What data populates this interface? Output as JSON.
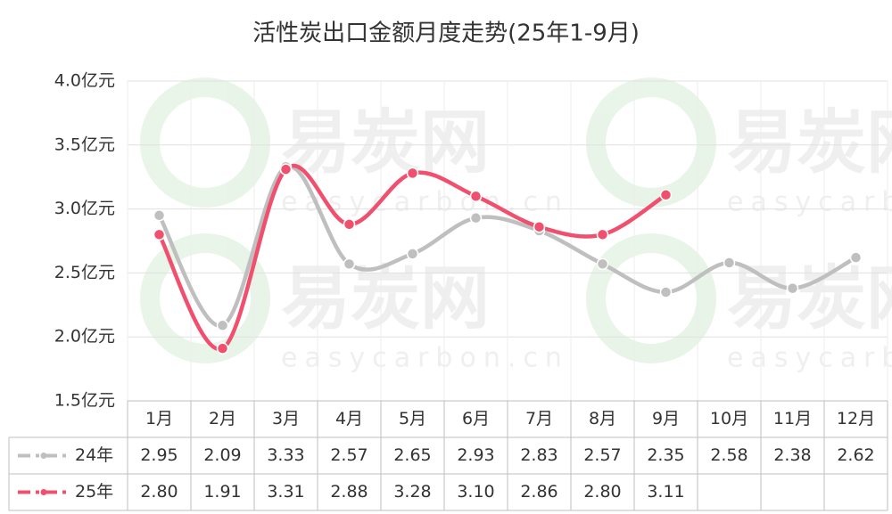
{
  "chart_data": {
    "type": "line",
    "title": "活性炭出口金额月度走势(25年1-9月)",
    "watermark": [
      "易炭网",
      "easycarbon.cn"
    ],
    "categories": [
      "1月",
      "2月",
      "3月",
      "4月",
      "5月",
      "6月",
      "7月",
      "8月",
      "9月",
      "10月",
      "11月",
      "12月"
    ],
    "series": [
      {
        "name": "24年",
        "color": "#bfbfbf",
        "values": [
          2.95,
          2.09,
          3.33,
          2.57,
          2.65,
          2.93,
          2.83,
          2.57,
          2.35,
          2.58,
          2.38,
          2.62
        ],
        "value_labels": [
          "2.95",
          "2.09",
          "3.33",
          "2.57",
          "2.65",
          "2.93",
          "2.83",
          "2.57",
          "2.35",
          "2.58",
          "2.38",
          "2.62"
        ]
      },
      {
        "name": "25年",
        "color": "#f0506e",
        "values": [
          2.8,
          1.91,
          3.31,
          2.88,
          3.28,
          3.1,
          2.86,
          2.8,
          3.11,
          null,
          null,
          null
        ],
        "value_labels": [
          "2.80",
          "1.91",
          "3.31",
          "2.88",
          "3.28",
          "3.10",
          "2.86",
          "2.80",
          "3.11",
          null,
          null,
          null
        ]
      }
    ],
    "ylim": [
      1.5,
      4.0
    ],
    "yticks": [
      {
        "value": 1.5,
        "label": "1.5亿元"
      },
      {
        "value": 2.0,
        "label": "2.0亿元"
      },
      {
        "value": 2.5,
        "label": "2.5亿元"
      },
      {
        "value": 3.0,
        "label": "3.0亿元"
      },
      {
        "value": 3.5,
        "label": "3.5亿元"
      },
      {
        "value": 4.0,
        "label": "4.0亿元"
      }
    ],
    "grid": true
  }
}
